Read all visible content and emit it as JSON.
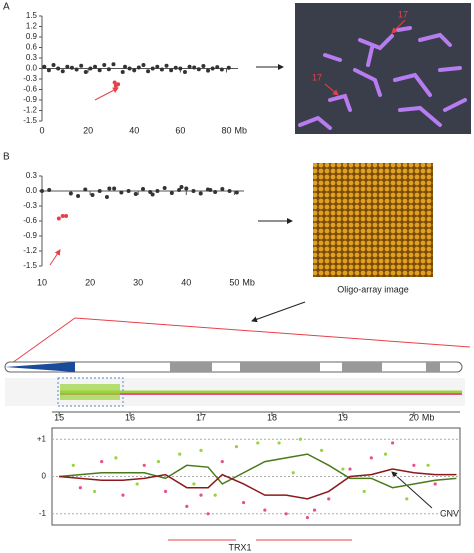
{
  "panel_labels": [
    "A",
    "B"
  ],
  "fish_labels": [
    "17",
    "17"
  ],
  "array_caption": "Oligo-array image",
  "chart_data": [
    {
      "type": "scatter",
      "xlim": [
        0,
        85
      ],
      "ylim": [
        -1.5,
        1.5
      ],
      "x_unit": "Mb",
      "xticks": [
        0,
        20,
        40,
        60,
        80
      ],
      "yticks": [
        1.5,
        1.2,
        0.9,
        0.6,
        0.3,
        {
          "value": 0,
          "label": "0.0"
        },
        -0.3,
        -0.6,
        -0.9,
        -1.2,
        -1.5
      ],
      "series": [
        {
          "color": "#333333",
          "x": [
            1,
            3,
            5,
            7,
            9,
            11,
            13,
            15,
            17,
            19,
            21,
            23,
            25,
            27,
            29,
            31,
            35,
            36,
            38,
            40,
            42,
            44,
            46,
            48,
            50,
            52,
            54,
            56,
            58,
            60,
            62,
            64,
            66,
            68,
            70,
            72,
            74,
            76,
            78,
            81
          ],
          "values": [
            0.05,
            -0.05,
            0.1,
            0.0,
            -0.08,
            0.05,
            0.02,
            -0.03,
            0.08,
            -0.1,
            0.0,
            0.05,
            -0.05,
            0.1,
            -0.02,
            0.12,
            -0.1,
            0.05,
            0.0,
            -0.05,
            0.03,
            0.1,
            -0.08,
            0.0,
            0.05,
            -0.03,
            0.08,
            -0.05,
            0.02,
            0.0,
            -0.1,
            0.05,
            0.03,
            -0.02,
            0.07,
            -0.06,
            0.0,
            0.04,
            -0.03,
            0.02
          ]
        },
        {
          "color": "#e8404a",
          "x": [
            31.5,
            32,
            33
          ],
          "values": [
            -0.4,
            -0.5,
            -0.45
          ]
        }
      ]
    },
    {
      "type": "scatter",
      "xlim": [
        10,
        52
      ],
      "ylim": [
        -1.5,
        0.3
      ],
      "x_unit": "Mb",
      "xticks": [
        10,
        20,
        30,
        40,
        50
      ],
      "yticks": [
        0.3,
        {
          "value": 0,
          "label": "0.0"
        },
        -0.3,
        -0.6,
        -0.9,
        -1.2,
        -1.5
      ],
      "series": [
        {
          "color": "#333333",
          "x": [
            10,
            11.5,
            16,
            17.5,
            19,
            20.5,
            22,
            23.5,
            25,
            26.5,
            28,
            29.5,
            31,
            32.5,
            34,
            35.5,
            37,
            38.5,
            40,
            41.5,
            43,
            44.5,
            46,
            47.5,
            49,
            50.5,
            24,
            33,
            39,
            45
          ],
          "values": [
            0.0,
            0.02,
            -0.05,
            -0.1,
            0.03,
            -0.08,
            0.0,
            -0.12,
            0.05,
            -0.03,
            0.0,
            -0.06,
            0.04,
            -0.02,
            0.0,
            0.06,
            -0.04,
            0.02,
            0.05,
            0.0,
            -0.05,
            0.03,
            -0.02,
            0.04,
            0.0,
            -0.03,
            0.05,
            -0.07,
            0.08,
            0.02
          ]
        },
        {
          "color": "#e8404a",
          "x": [
            13.5,
            14.3,
            15
          ],
          "values": [
            -0.55,
            -0.5,
            -0.5
          ]
        }
      ]
    },
    {
      "type": "scatter",
      "xlim": [
        14.9,
        20.65
      ],
      "ylim": [
        -1.3,
        1.3
      ],
      "x_unit": "Mb",
      "grid": true,
      "xticks": [
        15,
        16,
        17,
        18,
        19,
        20
      ],
      "yticks": [
        {
          "value": 1,
          "label": "+1"
        },
        0,
        -1
      ],
      "annotations": [
        "TRX1",
        "CNV"
      ],
      "series": [
        {
          "color": "#9ad43a",
          "x": [
            15.2,
            15.5,
            15.8,
            16.1,
            16.4,
            16.7,
            17.0,
            17.2,
            17.5,
            17.8,
            18.1,
            18.4,
            18.7,
            19.0,
            19.3,
            19.6,
            19.9,
            20.2,
            16.9,
            18.3
          ],
          "values": [
            0.3,
            -0.4,
            0.5,
            -0.2,
            0.4,
            0.6,
            0.7,
            -0.5,
            0.8,
            0.9,
            0.9,
            1.0,
            0.7,
            0.2,
            -0.4,
            0.6,
            -0.6,
            0.3,
            -0.2,
            0.1
          ]
        },
        {
          "color": "#e8508a",
          "x": [
            15.3,
            15.6,
            15.9,
            16.2,
            16.5,
            16.8,
            17.1,
            17.3,
            17.6,
            17.9,
            18.2,
            18.5,
            18.8,
            19.1,
            19.4,
            19.7,
            20.0,
            20.3,
            17.0,
            18.6
          ],
          "values": [
            -0.3,
            0.4,
            -0.5,
            0.3,
            -0.4,
            -0.8,
            -1.0,
            0.4,
            -0.7,
            -0.9,
            -1.0,
            -1.1,
            -0.6,
            0.2,
            0.5,
            0.9,
            0.3,
            -0.2,
            -0.5,
            -0.9
          ]
        },
        {
          "color": "#4a7a1a",
          "mode": "line",
          "x": [
            15.0,
            15.3,
            15.6,
            15.9,
            16.2,
            16.5,
            16.8,
            17.1,
            17.3,
            17.6,
            17.9,
            18.2,
            18.5,
            18.8,
            19.1,
            19.4,
            19.7,
            20.0,
            20.3,
            20.6
          ],
          "values": [
            0,
            0.05,
            0.1,
            0.1,
            0.1,
            -0.05,
            0.3,
            0.25,
            -0.2,
            0.1,
            0.4,
            0.5,
            0.6,
            0.3,
            -0.05,
            -0.05,
            -0.3,
            -0.2,
            -0.1,
            -0.05
          ]
        },
        {
          "color": "#8a1a1a",
          "mode": "line",
          "x": [
            15.0,
            15.3,
            15.6,
            15.9,
            16.2,
            16.5,
            16.8,
            17.1,
            17.3,
            17.6,
            17.9,
            18.2,
            18.5,
            18.8,
            19.1,
            19.4,
            19.7,
            20.0,
            20.3,
            20.6
          ],
          "values": [
            0,
            -0.05,
            -0.1,
            -0.1,
            -0.05,
            0.05,
            -0.3,
            -0.3,
            0.05,
            -0.2,
            -0.5,
            -0.5,
            -0.6,
            -0.4,
            0.0,
            0.05,
            0.2,
            0.1,
            0.05,
            0.05
          ]
        }
      ]
    }
  ]
}
